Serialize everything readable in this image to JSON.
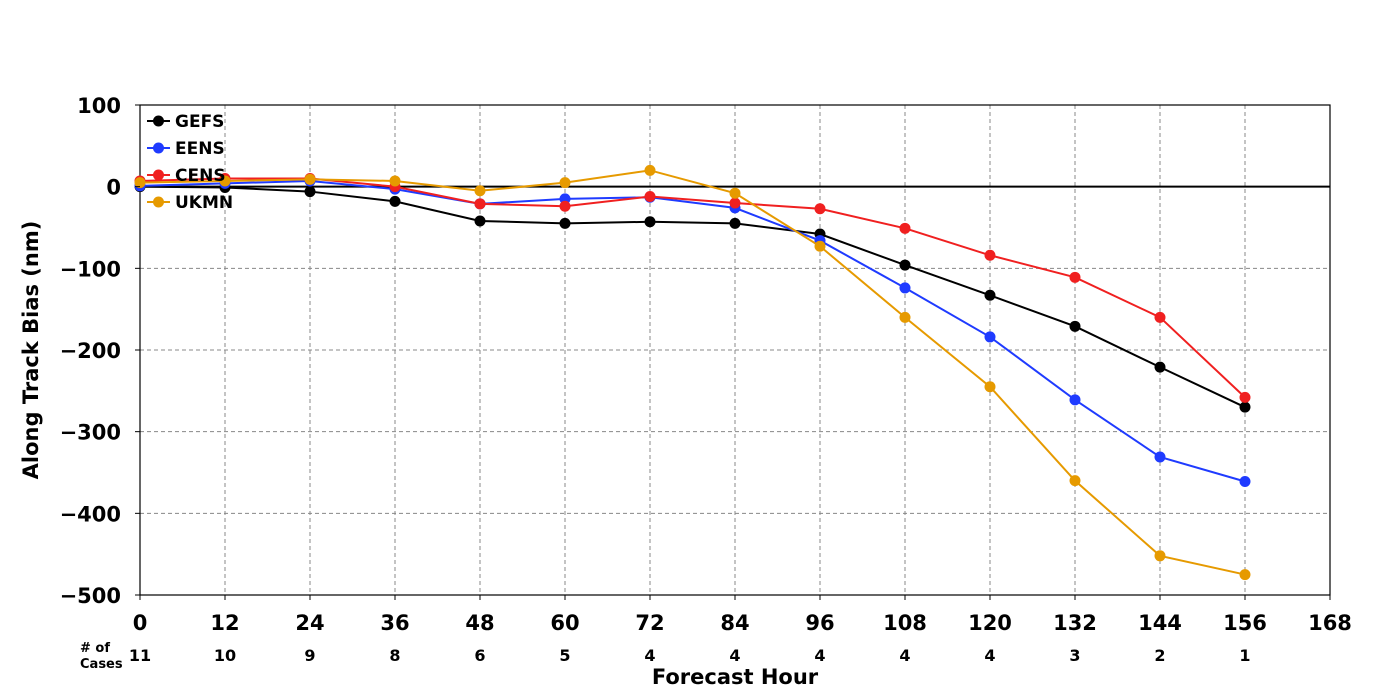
{
  "chart_data": {
    "type": "line",
    "xlabel": "Forecast Hour",
    "ylabel": "Along Track Bias (nm)",
    "xlim": [
      0,
      168
    ],
    "ylim": [
      -500,
      100
    ],
    "xticks": [
      0,
      12,
      24,
      36,
      48,
      60,
      72,
      84,
      96,
      108,
      120,
      132,
      144,
      156,
      168
    ],
    "yticks": [
      100,
      0,
      -100,
      -200,
      -300,
      -400,
      -500
    ],
    "ytick_labels": [
      "100",
      "0",
      "−100",
      "−200",
      "−300",
      "−400",
      "−500"
    ],
    "grid": true,
    "legend_position": "top-left",
    "cases_label": [
      "# of",
      "Cases"
    ],
    "cases": [
      11,
      10,
      9,
      8,
      6,
      5,
      4,
      4,
      4,
      4,
      4,
      3,
      2,
      1
    ],
    "x": [
      0,
      12,
      24,
      36,
      48,
      60,
      72,
      84,
      96,
      108,
      120,
      132,
      144,
      156
    ],
    "series": [
      {
        "name": "GEFS",
        "color": "#000000",
        "values": [
          0,
          -1,
          -6,
          -18,
          -42,
          -45,
          -43,
          -45,
          -58,
          -96,
          -133,
          -171,
          -221,
          -270
        ]
      },
      {
        "name": "EENS",
        "color": "#1f3bff",
        "values": [
          1,
          4,
          7,
          -3,
          -21,
          -15,
          -13,
          -26,
          -66,
          -124,
          -184,
          -261,
          -331,
          -361
        ]
      },
      {
        "name": "CENS",
        "color": "#f02020",
        "values": [
          7,
          10,
          10,
          0,
          -21,
          -24,
          -12,
          -20,
          -27,
          -51,
          -84,
          -111,
          -160,
          -258
        ]
      },
      {
        "name": "UKMN",
        "color": "#e69a00",
        "values": [
          5,
          7,
          9,
          7,
          -5,
          5,
          20,
          -8,
          -73,
          -160,
          -245,
          -360,
          -452,
          -475
        ]
      }
    ]
  }
}
